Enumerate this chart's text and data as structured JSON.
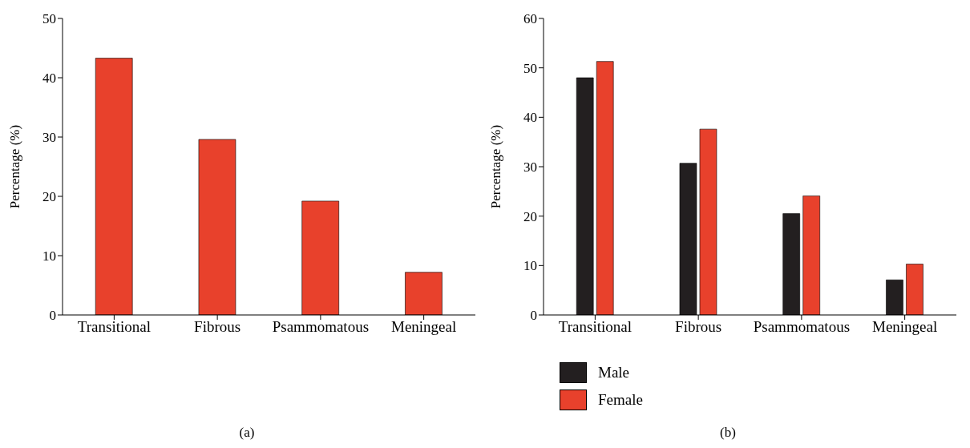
{
  "chart_data": [
    {
      "type": "bar",
      "categories": [
        "Transitional",
        "Fibrous",
        "Psammomatous",
        "Meningeal"
      ],
      "ylabel": "Percentage (%)",
      "ylim": [
        0,
        50
      ],
      "yticks": [
        0,
        10,
        20,
        30,
        40,
        50
      ],
      "grid": false,
      "legend": false,
      "series": [
        {
          "color": "#e8412c",
          "values": [
            43.3,
            29.6,
            19.2,
            7.2
          ]
        }
      ],
      "annotations": [
        "(a)"
      ]
    },
    {
      "type": "bar",
      "categories": [
        "Transitional",
        "Fibrous",
        "Psammomatous",
        "Meningeal"
      ],
      "ylabel": "Percentage (%)",
      "ylim": [
        0,
        60
      ],
      "yticks": [
        0,
        10,
        20,
        30,
        40,
        50,
        60
      ],
      "grid": false,
      "legend": "bottom left",
      "series": [
        {
          "name": "Male",
          "color": "#231f20",
          "values": [
            48.0,
            30.7,
            20.5,
            7.1
          ]
        },
        {
          "name": "Female",
          "color": "#e8412c",
          "values": [
            51.3,
            37.6,
            24.1,
            10.3
          ]
        }
      ],
      "annotations": [
        "(b)"
      ]
    }
  ]
}
